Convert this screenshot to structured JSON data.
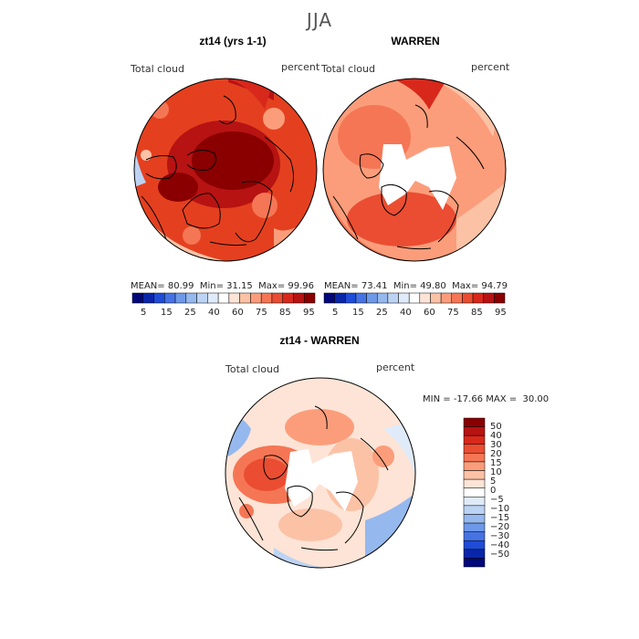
{
  "season": "JJA",
  "colors": {
    "warm": [
      "#fde4d6",
      "#fcc2a6",
      "#fb9d7b",
      "#f57655",
      "#ea4d32",
      "#d8281b",
      "#b71313",
      "#8a0000"
    ],
    "cool": [
      "#e0ebfa",
      "#bcd3f4",
      "#95b8ee",
      "#6d99e8",
      "#4673e4",
      "#1f4cd8",
      "#0a26a8",
      "#00087a"
    ],
    "land_outline": "#000000"
  },
  "panels": [
    {
      "title": "zt14 (yrs 1-1)",
      "variable": "Total cloud",
      "units": "percent",
      "mean": "80.99",
      "min": "31.15",
      "max": "99.96",
      "colorbar_ticks": [
        "5",
        "15",
        "25",
        "40",
        "60",
        "75",
        "85",
        "95"
      ]
    },
    {
      "title": "WARREN",
      "variable": "Total cloud",
      "units": "percent",
      "mean": "73.41",
      "min": "49.80",
      "max": "94.79",
      "colorbar_ticks": [
        "5",
        "15",
        "25",
        "40",
        "60",
        "75",
        "85",
        "95"
      ]
    }
  ],
  "diff_panel": {
    "title": "zt14 - WARREN",
    "variable": "Total cloud",
    "units": "percent",
    "min": "-17.66",
    "max": "30.00",
    "colorbar_ticks": [
      "50",
      "40",
      "30",
      "20",
      "15",
      "10",
      "5",
      "0",
      "−5",
      "−10",
      "−15",
      "−20",
      "−30",
      "−40",
      "−50"
    ]
  },
  "labels": {
    "mean_label": "MEAN=",
    "min_label": "Min=",
    "max_label": "Max=",
    "min_upper": "MIN =",
    "max_upper": "MAX ="
  }
}
